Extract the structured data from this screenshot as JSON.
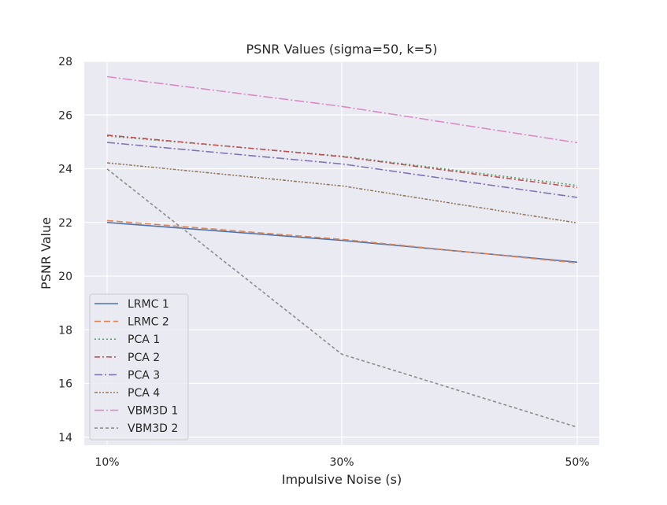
{
  "chart_data": {
    "type": "line",
    "title": "PSNR Values (sigma=50, k=5)",
    "xlabel": "Impulsive Noise (s)",
    "ylabel": "PSNR Value",
    "categories": [
      "10%",
      "30%",
      "50%"
    ],
    "ylim": [
      13.7,
      28.0
    ],
    "yticks": [
      14,
      16,
      18,
      20,
      22,
      24,
      26,
      28
    ],
    "grid": true,
    "legend_position": "lower-left",
    "series": [
      {
        "name": "LRMC 1",
        "values": [
          22.0,
          21.33,
          20.52
        ],
        "color": "#4c72b0",
        "dash": ""
      },
      {
        "name": "LRMC 2",
        "values": [
          22.07,
          21.37,
          20.49
        ],
        "color": "#dd8452",
        "dash": "8,4"
      },
      {
        "name": "PCA 1",
        "values": [
          25.22,
          24.47,
          23.38
        ],
        "color": "#55a868",
        "dash": "2,3"
      },
      {
        "name": "PCA 2",
        "values": [
          25.25,
          24.45,
          23.3
        ],
        "color": "#c44e52",
        "dash": "7,3,2,3"
      },
      {
        "name": "PCA 3",
        "values": [
          24.98,
          24.18,
          22.93
        ],
        "color": "#8172b3",
        "dash": "10,3,2,3"
      },
      {
        "name": "PCA 4",
        "values": [
          24.22,
          23.36,
          21.98
        ],
        "color": "#937860",
        "dash": "4,2,2,2,2,2"
      },
      {
        "name": "VBM3D 1",
        "values": [
          27.43,
          26.32,
          24.97
        ],
        "color": "#da8bc3",
        "dash": "12,3,2,3"
      },
      {
        "name": "VBM3D 2",
        "values": [
          23.99,
          17.09,
          14.37
        ],
        "color": "#8c8c8c",
        "dash": "4,3"
      }
    ]
  }
}
